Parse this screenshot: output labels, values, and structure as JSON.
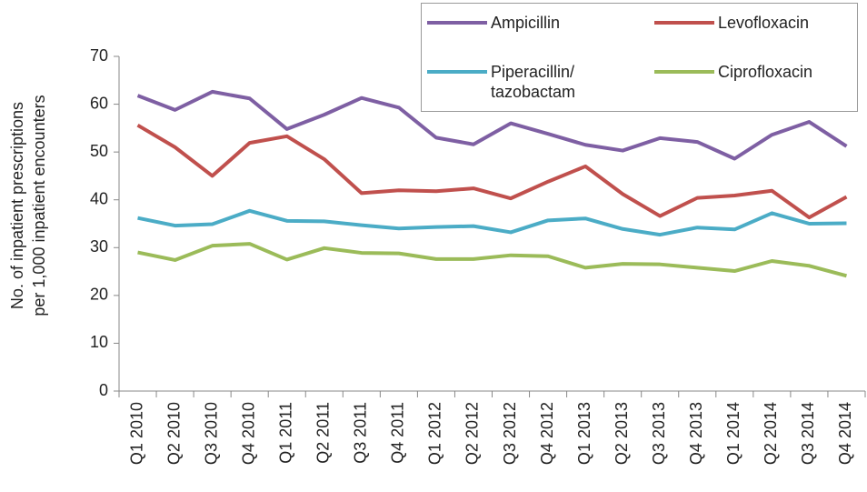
{
  "chart_data": {
    "type": "line",
    "ylabel": [
      "No. of inpatient prescriptions",
      "per 1,000 inpatient encounters"
    ],
    "categories": [
      "Q1 2010",
      "Q2 2010",
      "Q3 2010",
      "Q4 2010",
      "Q1 2011",
      "Q2 2011",
      "Q3 2011",
      "Q4 2011",
      "Q1 2012",
      "Q2 2012",
      "Q3 2012",
      "Q4 2012",
      "Q1 2013",
      "Q2 2013",
      "Q3 2013",
      "Q4 2013",
      "Q1 2014",
      "Q2 2014",
      "Q3 2014",
      "Q4 2014"
    ],
    "series": [
      {
        "name": "Ampicillin",
        "color": "#7e5fa3",
        "values": [
          61.8,
          58.8,
          62.6,
          61.2,
          54.8,
          57.8,
          61.3,
          59.3,
          53.0,
          51.6,
          56.0,
          53.8,
          51.5,
          50.3,
          52.9,
          52.1,
          48.6,
          53.6,
          56.3,
          51.2
        ]
      },
      {
        "name": "Levofloxacin",
        "color": "#c0504d",
        "values": [
          55.6,
          51.0,
          45.0,
          51.9,
          53.3,
          48.5,
          41.4,
          42.0,
          41.8,
          42.4,
          40.3,
          43.8,
          47.0,
          41.2,
          36.6,
          40.4,
          40.9,
          41.9,
          36.3,
          40.6
        ]
      },
      {
        "name": "Piperacillin/ tazobactam",
        "color": "#4bacc6",
        "values": [
          36.2,
          34.6,
          34.9,
          37.7,
          35.6,
          35.5,
          34.7,
          34.0,
          34.3,
          34.5,
          33.2,
          35.7,
          36.1,
          33.9,
          32.7,
          34.2,
          33.8,
          37.2,
          35.0,
          35.1
        ]
      },
      {
        "name": "Ciprofloxacin",
        "color": "#9bbb59",
        "values": [
          29.0,
          27.4,
          30.4,
          30.8,
          27.5,
          29.9,
          28.9,
          28.8,
          27.6,
          27.6,
          28.4,
          28.2,
          25.8,
          26.6,
          26.5,
          25.8,
          25.1,
          27.2,
          26.2,
          24.1
        ]
      }
    ],
    "ylim": [
      0,
      70
    ],
    "yticks": [
      0,
      10,
      20,
      30,
      40,
      50,
      60,
      70
    ]
  }
}
